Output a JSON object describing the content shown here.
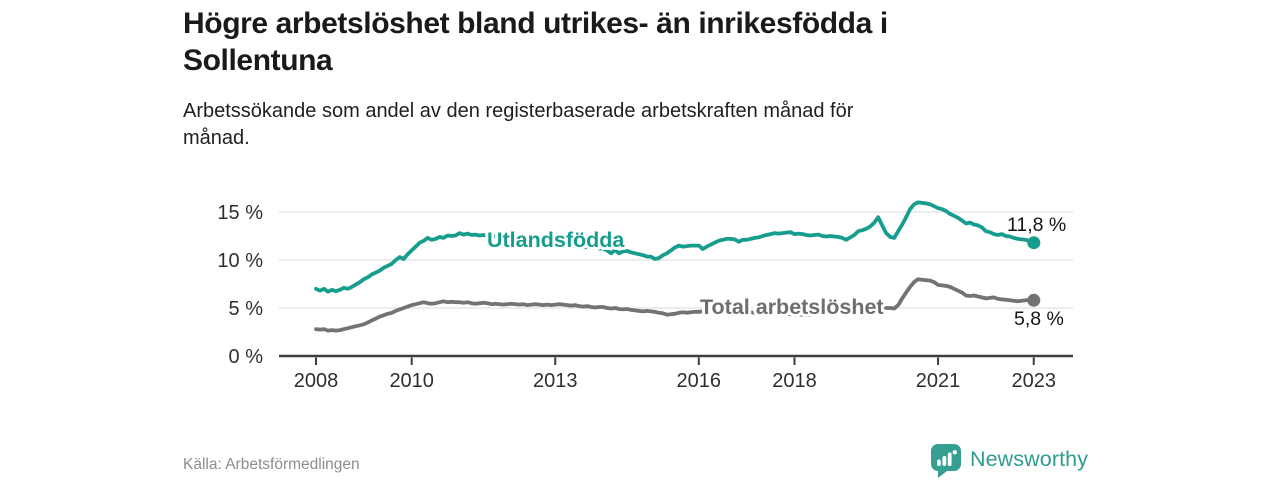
{
  "header": {
    "title_lines": [
      "Högre arbetslöshet bland utrikes- än inrikesfödda i",
      "Sollentuna"
    ],
    "subtitle_lines": [
      "Arbetssökande som andel av den registerbaserade arbetskraften månad för",
      "månad."
    ]
  },
  "footer": {
    "source": "Källa: Arbetsförmedlingen",
    "brand": "Newsworthy"
  },
  "colors": {
    "series_foreign_born": "#169d8e",
    "series_total": "#737373",
    "series_total_label": "#6e6e6e",
    "grid": "#e0e0e0",
    "axis": "#3d3d3d",
    "value_text": "#141414",
    "brand_teal": "#2f9c8e"
  },
  "chart_data": {
    "type": "line",
    "title": "Högre arbetslöshet bland utrikes- än inrikesfödda i Sollentuna",
    "subtitle": "Arbetssökande som andel av den registerbaserade arbetskraften månad för månad.",
    "x_unit": "month",
    "x_start_year": 2008,
    "x_end_label": "jan 2023",
    "ylim": [
      0,
      16.5
    ],
    "grid": "horizontal",
    "y_ticks": [
      {
        "v": 0,
        "label": "0 %"
      },
      {
        "v": 5,
        "label": "5 %"
      },
      {
        "v": 10,
        "label": "10 %"
      },
      {
        "v": 15,
        "label": "15 %"
      }
    ],
    "x_ticks": [
      {
        "v": 2008,
        "label": "2008"
      },
      {
        "v": 2010,
        "label": "2010"
      },
      {
        "v": 2013,
        "label": "2013"
      },
      {
        "v": 2016,
        "label": "2016"
      },
      {
        "v": 2018,
        "label": "2018"
      },
      {
        "v": 2021,
        "label": "2021"
      },
      {
        "v": 2023,
        "label": "2023"
      }
    ],
    "series": [
      {
        "name": "Utlandsfödda",
        "color": "#169d8e",
        "end_label": "11,8 %",
        "end_value": 11.8,
        "values": [
          7.0,
          6.8,
          7.0,
          6.7,
          6.9,
          6.75,
          6.9,
          7.1,
          7.0,
          7.2,
          7.45,
          7.7,
          8.0,
          8.2,
          8.5,
          8.7,
          8.9,
          9.2,
          9.4,
          9.6,
          10.0,
          10.3,
          10.1,
          10.6,
          11.0,
          11.4,
          11.8,
          12.0,
          12.3,
          12.1,
          12.2,
          12.4,
          12.3,
          12.55,
          12.5,
          12.55,
          12.8,
          12.65,
          12.75,
          12.6,
          12.65,
          12.55,
          12.6,
          12.5,
          12.55,
          12.45,
          12.4,
          12.35,
          12.3,
          12.25,
          12.2,
          12.15,
          12.2,
          12.05,
          12.0,
          12.05,
          11.95,
          11.85,
          11.9,
          11.75,
          11.7,
          11.6,
          11.65,
          11.55,
          11.45,
          11.5,
          11.4,
          11.3,
          11.35,
          11.25,
          11.3,
          11.2,
          11.2,
          11.0,
          10.7,
          11.05,
          10.7,
          10.9,
          10.95,
          10.8,
          10.7,
          10.6,
          10.5,
          10.35,
          10.35,
          10.1,
          10.2,
          10.5,
          10.7,
          11.0,
          11.3,
          11.5,
          11.4,
          11.45,
          11.5,
          11.5,
          11.5,
          11.15,
          11.4,
          11.6,
          11.8,
          12.0,
          12.1,
          12.2,
          12.2,
          12.15,
          11.9,
          12.1,
          12.1,
          12.2,
          12.3,
          12.35,
          12.5,
          12.6,
          12.7,
          12.8,
          12.75,
          12.8,
          12.85,
          12.9,
          12.7,
          12.75,
          12.7,
          12.6,
          12.55,
          12.6,
          12.65,
          12.5,
          12.45,
          12.5,
          12.45,
          12.4,
          12.3,
          12.1,
          12.35,
          12.6,
          13.0,
          13.1,
          13.25,
          13.5,
          13.9,
          14.45,
          13.6,
          12.8,
          12.4,
          12.3,
          13.0,
          13.7,
          14.45,
          15.3,
          15.8,
          16.0,
          15.95,
          15.9,
          15.8,
          15.6,
          15.4,
          15.3,
          15.1,
          14.8,
          14.6,
          14.4,
          14.1,
          13.8,
          13.9,
          13.7,
          13.6,
          13.4,
          13.0,
          12.9,
          12.7,
          12.6,
          12.7,
          12.5,
          12.45,
          12.3,
          12.2,
          12.15,
          12.1,
          11.95,
          11.8
        ]
      },
      {
        "name": "Total arbetslöshet",
        "color": "#737373",
        "end_label": "5,8 %",
        "end_value": 5.8,
        "values": [
          2.8,
          2.75,
          2.8,
          2.65,
          2.7,
          2.65,
          2.7,
          2.8,
          2.9,
          3.0,
          3.1,
          3.2,
          3.3,
          3.5,
          3.7,
          3.9,
          4.1,
          4.25,
          4.4,
          4.5,
          4.7,
          4.85,
          5.0,
          5.15,
          5.3,
          5.4,
          5.5,
          5.6,
          5.5,
          5.45,
          5.5,
          5.6,
          5.7,
          5.6,
          5.65,
          5.6,
          5.6,
          5.55,
          5.6,
          5.5,
          5.45,
          5.5,
          5.55,
          5.5,
          5.4,
          5.45,
          5.4,
          5.35,
          5.4,
          5.45,
          5.4,
          5.35,
          5.4,
          5.3,
          5.35,
          5.4,
          5.35,
          5.3,
          5.35,
          5.3,
          5.35,
          5.4,
          5.35,
          5.3,
          5.25,
          5.3,
          5.2,
          5.15,
          5.2,
          5.1,
          5.05,
          5.1,
          5.1,
          5.0,
          4.95,
          5.0,
          4.9,
          4.85,
          4.9,
          4.8,
          4.75,
          4.7,
          4.65,
          4.7,
          4.65,
          4.6,
          4.5,
          4.45,
          4.3,
          4.35,
          4.4,
          4.5,
          4.55,
          4.5,
          4.55,
          4.6,
          4.6,
          4.65,
          4.7,
          4.75,
          4.7,
          4.75,
          4.8,
          4.75,
          4.7,
          4.75,
          4.7,
          4.65,
          4.6,
          4.55,
          4.5,
          4.45,
          4.5,
          4.45,
          4.4,
          4.45,
          4.4,
          4.35,
          4.4,
          4.35,
          4.3,
          4.35,
          4.3,
          4.25,
          4.3,
          4.35,
          4.4,
          4.35,
          4.4,
          4.45,
          4.5,
          4.55,
          4.6,
          4.65,
          4.7,
          4.75,
          4.8,
          4.85,
          4.9,
          4.95,
          5.0,
          5.1,
          5.05,
          5.0,
          5.0,
          4.95,
          5.3,
          6.0,
          6.6,
          7.2,
          7.7,
          8.0,
          7.95,
          7.9,
          7.85,
          7.7,
          7.4,
          7.35,
          7.3,
          7.2,
          7.0,
          6.8,
          6.6,
          6.3,
          6.25,
          6.3,
          6.2,
          6.1,
          6.0,
          6.05,
          6.1,
          5.95,
          5.9,
          5.85,
          5.8,
          5.75,
          5.7,
          5.75,
          5.8,
          5.85,
          5.8
        ]
      }
    ]
  }
}
